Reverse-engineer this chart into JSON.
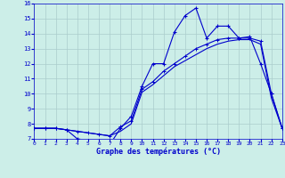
{
  "title": "Graphe des températures (°C)",
  "bg_color": "#cceee8",
  "grid_color": "#aacccc",
  "line_color": "#0000cc",
  "x_hours": [
    0,
    1,
    2,
    3,
    4,
    5,
    6,
    7,
    8,
    9,
    10,
    11,
    12,
    13,
    14,
    15,
    16,
    17,
    18,
    19,
    20,
    21,
    22,
    23
  ],
  "line1": [
    7.7,
    7.7,
    7.7,
    7.6,
    7.0,
    6.9,
    6.7,
    6.6,
    7.7,
    8.5,
    10.5,
    12.0,
    12.0,
    14.1,
    15.2,
    15.7,
    13.7,
    14.5,
    14.5,
    13.7,
    13.8,
    12.0,
    10.0,
    7.7
  ],
  "line2": [
    7.7,
    7.7,
    7.7,
    7.6,
    7.5,
    7.4,
    7.3,
    7.2,
    7.8,
    8.2,
    10.3,
    10.8,
    11.5,
    12.0,
    12.5,
    13.0,
    13.3,
    13.6,
    13.7,
    13.7,
    13.7,
    13.5,
    10.0,
    7.7
  ],
  "line3": [
    7.7,
    7.7,
    7.7,
    7.6,
    7.5,
    7.4,
    7.3,
    7.2,
    7.5,
    8.0,
    10.1,
    10.6,
    11.2,
    11.8,
    12.2,
    12.6,
    13.0,
    13.3,
    13.5,
    13.6,
    13.6,
    13.3,
    9.7,
    7.7
  ],
  "ylim": [
    7,
    16
  ],
  "yticks": [
    7,
    8,
    9,
    10,
    11,
    12,
    13,
    14,
    15,
    16
  ],
  "xlim": [
    0,
    23
  ],
  "xticks": [
    0,
    1,
    2,
    3,
    4,
    5,
    6,
    7,
    8,
    9,
    10,
    11,
    12,
    13,
    14,
    15,
    16,
    17,
    18,
    19,
    20,
    21,
    22,
    23
  ]
}
